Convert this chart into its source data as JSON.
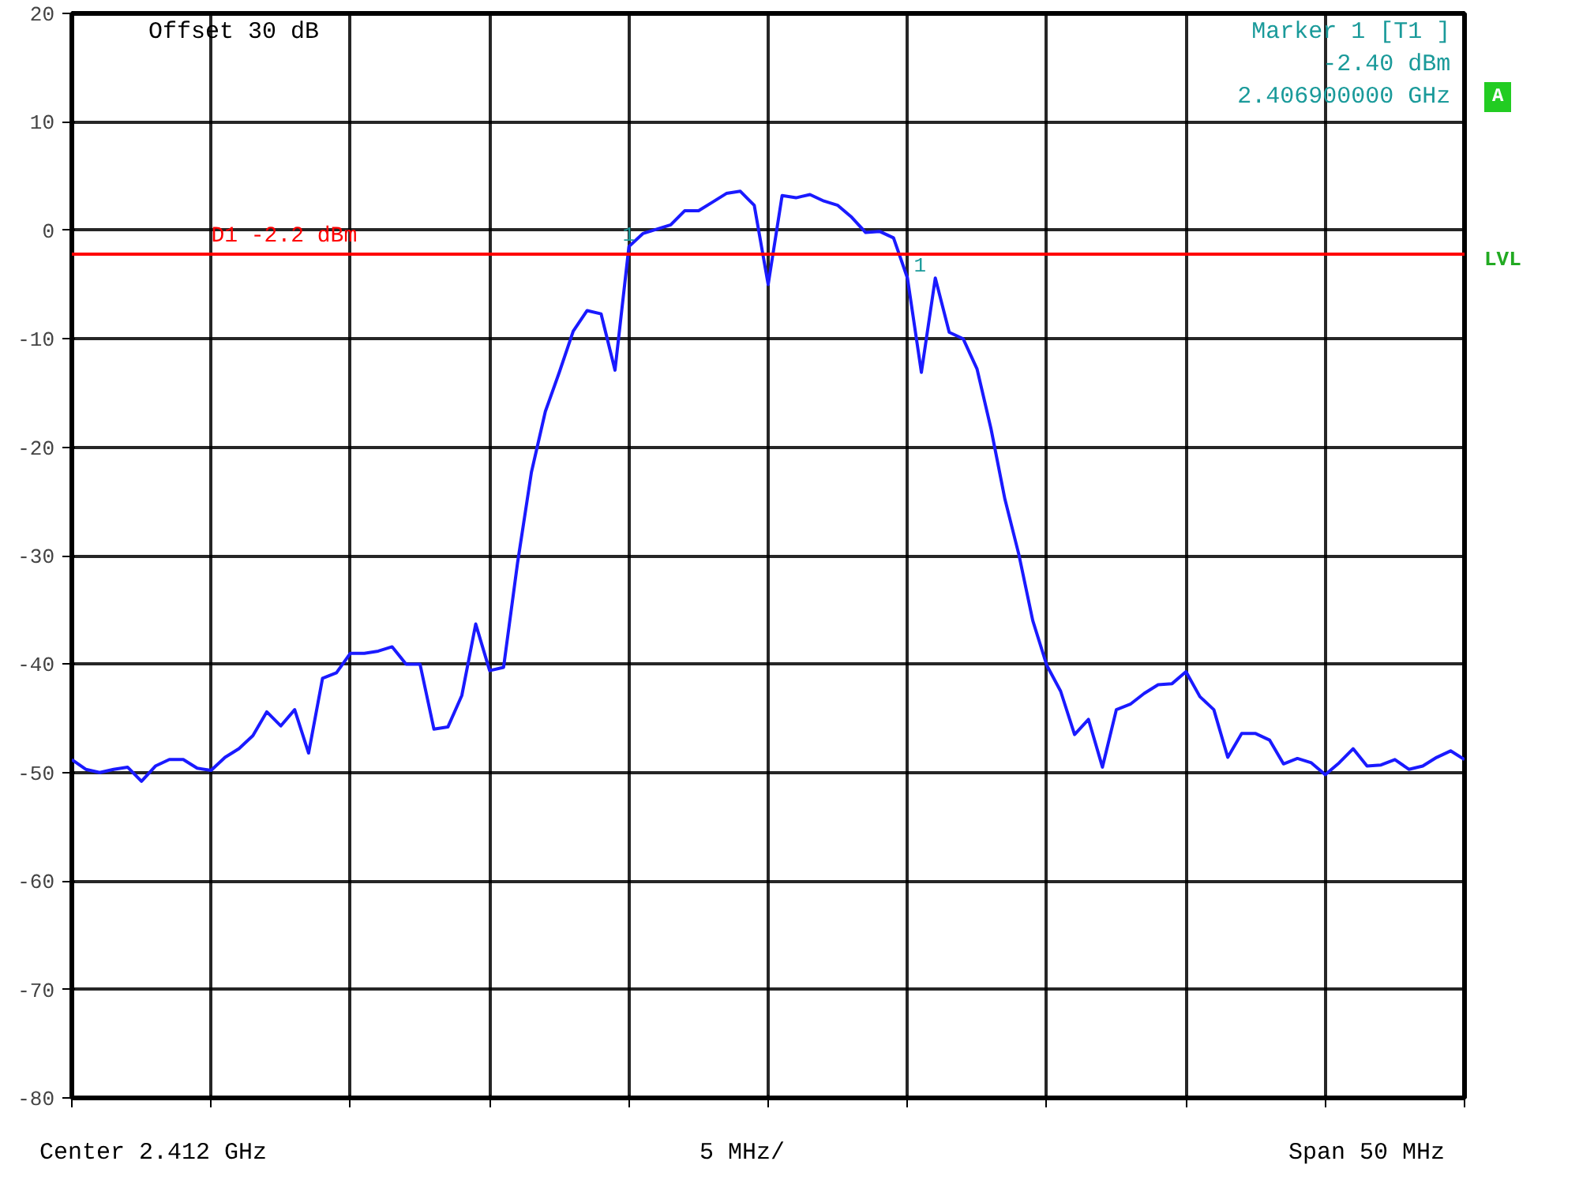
{
  "chart_data": {
    "type": "line",
    "ylim": [
      -80,
      20
    ],
    "yticks": [
      20,
      10,
      0,
      -10,
      -20,
      -30,
      -40,
      -50,
      -60,
      -70,
      -80
    ],
    "grid": true,
    "line_style": "solid",
    "categories": [
      null,
      null,
      null,
      null,
      null,
      null,
      null,
      null,
      null,
      null,
      null,
      null,
      null,
      null,
      null,
      null,
      null,
      null,
      null,
      null,
      null,
      null,
      null,
      null,
      null,
      null,
      null,
      null,
      null,
      null,
      null,
      null,
      null,
      null,
      null,
      null,
      null,
      null,
      null,
      null,
      null,
      null,
      null,
      null,
      null,
      null,
      null,
      null,
      null,
      null,
      null,
      null,
      null,
      null,
      null,
      null,
      null,
      null,
      null,
      null,
      null,
      null,
      null,
      null,
      null,
      null,
      null,
      null,
      null,
      null,
      null,
      null,
      null,
      null,
      null,
      null,
      null,
      null,
      null,
      null,
      null,
      null,
      null,
      null,
      null,
      null,
      null,
      null,
      null,
      null,
      null,
      null,
      null,
      null,
      null,
      null,
      null,
      null,
      null,
      null,
      null
    ],
    "series": [
      {
        "color": "#1a1aff",
        "values": [
          -48.8,
          -49.7,
          -50.0,
          -49.7,
          -49.5,
          -50.8,
          -49.4,
          -48.8,
          -48.8,
          -49.6,
          -49.8,
          -48.6,
          -47.8,
          -46.6,
          -44.4,
          -45.7,
          -44.2,
          -48.2,
          -41.3,
          -40.8,
          -39.0,
          -39.0,
          -38.8,
          -38.4,
          -40.0,
          -40.0,
          -46.0,
          -45.8,
          -42.9,
          -36.3,
          -40.6,
          -40.3,
          -30.7,
          -22.3,
          -16.7,
          -13.1,
          -9.3,
          -7.4,
          -7.7,
          -12.9,
          -1.5,
          -0.3,
          0.1,
          0.5,
          1.8,
          1.8,
          2.6,
          3.4,
          3.6,
          2.3,
          -5.0,
          3.2,
          3.0,
          3.3,
          2.7,
          2.3,
          1.2,
          -0.2,
          -0.1,
          -0.7,
          -4.4,
          -13.1,
          -4.4,
          -9.4,
          -10.0,
          -12.8,
          -18.3,
          -24.8,
          -29.9,
          -36.0,
          -40.1,
          -42.5,
          -46.5,
          -45.1,
          -49.5,
          -44.2,
          -43.7,
          -42.7,
          -41.9,
          -41.8,
          -40.7,
          -43.0,
          -44.2,
          -48.6,
          -46.4,
          -46.4,
          -47.0,
          -49.2,
          -48.7,
          -49.1,
          -50.2,
          -49.1,
          -47.8,
          -49.4,
          -49.3,
          -48.8,
          -49.7,
          -49.4,
          -48.6,
          -48.0,
          -48.8
        ]
      }
    ],
    "ref_lines": [
      {
        "axis": "y",
        "value": -2.2,
        "label": "D1 -2.2 dBm",
        "color": "#ff0000"
      }
    ],
    "annotations": [
      "Offset 30 dB",
      "Marker 1 [T1 ]",
      "-2.40 dBm",
      "2.406900000 GHz",
      "A",
      "LVL",
      "Center 2.412 GHz",
      "5 MHz/",
      "Span 50 MHz",
      {
        "text": "1",
        "y": -2.4
      },
      {
        "text": "1",
        "y": -4.4
      }
    ]
  }
}
